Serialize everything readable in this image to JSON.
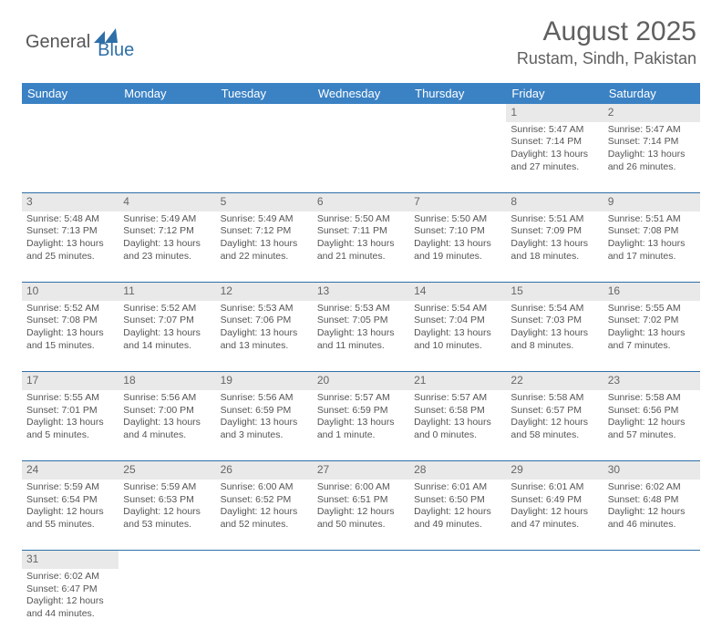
{
  "brand": {
    "part1": "General",
    "part2": "Blue"
  },
  "title": "August 2025",
  "location": "Rustam, Sindh, Pakistan",
  "colors": {
    "header_bg": "#3b82c4",
    "header_text": "#ffffff",
    "cell_border": "#2f6fa8",
    "daynum_bg": "#e9e9e9",
    "text": "#555555",
    "brand_accent": "#2f6fa8"
  },
  "weekdays": [
    "Sunday",
    "Monday",
    "Tuesday",
    "Wednesday",
    "Thursday",
    "Friday",
    "Saturday"
  ],
  "weeks": [
    [
      null,
      null,
      null,
      null,
      null,
      {
        "n": "1",
        "sr": "Sunrise: 5:47 AM",
        "ss": "Sunset: 7:14 PM",
        "dl1": "Daylight: 13 hours",
        "dl2": "and 27 minutes."
      },
      {
        "n": "2",
        "sr": "Sunrise: 5:47 AM",
        "ss": "Sunset: 7:14 PM",
        "dl1": "Daylight: 13 hours",
        "dl2": "and 26 minutes."
      }
    ],
    [
      {
        "n": "3",
        "sr": "Sunrise: 5:48 AM",
        "ss": "Sunset: 7:13 PM",
        "dl1": "Daylight: 13 hours",
        "dl2": "and 25 minutes."
      },
      {
        "n": "4",
        "sr": "Sunrise: 5:49 AM",
        "ss": "Sunset: 7:12 PM",
        "dl1": "Daylight: 13 hours",
        "dl2": "and 23 minutes."
      },
      {
        "n": "5",
        "sr": "Sunrise: 5:49 AM",
        "ss": "Sunset: 7:12 PM",
        "dl1": "Daylight: 13 hours",
        "dl2": "and 22 minutes."
      },
      {
        "n": "6",
        "sr": "Sunrise: 5:50 AM",
        "ss": "Sunset: 7:11 PM",
        "dl1": "Daylight: 13 hours",
        "dl2": "and 21 minutes."
      },
      {
        "n": "7",
        "sr": "Sunrise: 5:50 AM",
        "ss": "Sunset: 7:10 PM",
        "dl1": "Daylight: 13 hours",
        "dl2": "and 19 minutes."
      },
      {
        "n": "8",
        "sr": "Sunrise: 5:51 AM",
        "ss": "Sunset: 7:09 PM",
        "dl1": "Daylight: 13 hours",
        "dl2": "and 18 minutes."
      },
      {
        "n": "9",
        "sr": "Sunrise: 5:51 AM",
        "ss": "Sunset: 7:08 PM",
        "dl1": "Daylight: 13 hours",
        "dl2": "and 17 minutes."
      }
    ],
    [
      {
        "n": "10",
        "sr": "Sunrise: 5:52 AM",
        "ss": "Sunset: 7:08 PM",
        "dl1": "Daylight: 13 hours",
        "dl2": "and 15 minutes."
      },
      {
        "n": "11",
        "sr": "Sunrise: 5:52 AM",
        "ss": "Sunset: 7:07 PM",
        "dl1": "Daylight: 13 hours",
        "dl2": "and 14 minutes."
      },
      {
        "n": "12",
        "sr": "Sunrise: 5:53 AM",
        "ss": "Sunset: 7:06 PM",
        "dl1": "Daylight: 13 hours",
        "dl2": "and 13 minutes."
      },
      {
        "n": "13",
        "sr": "Sunrise: 5:53 AM",
        "ss": "Sunset: 7:05 PM",
        "dl1": "Daylight: 13 hours",
        "dl2": "and 11 minutes."
      },
      {
        "n": "14",
        "sr": "Sunrise: 5:54 AM",
        "ss": "Sunset: 7:04 PM",
        "dl1": "Daylight: 13 hours",
        "dl2": "and 10 minutes."
      },
      {
        "n": "15",
        "sr": "Sunrise: 5:54 AM",
        "ss": "Sunset: 7:03 PM",
        "dl1": "Daylight: 13 hours",
        "dl2": "and 8 minutes."
      },
      {
        "n": "16",
        "sr": "Sunrise: 5:55 AM",
        "ss": "Sunset: 7:02 PM",
        "dl1": "Daylight: 13 hours",
        "dl2": "and 7 minutes."
      }
    ],
    [
      {
        "n": "17",
        "sr": "Sunrise: 5:55 AM",
        "ss": "Sunset: 7:01 PM",
        "dl1": "Daylight: 13 hours",
        "dl2": "and 5 minutes."
      },
      {
        "n": "18",
        "sr": "Sunrise: 5:56 AM",
        "ss": "Sunset: 7:00 PM",
        "dl1": "Daylight: 13 hours",
        "dl2": "and 4 minutes."
      },
      {
        "n": "19",
        "sr": "Sunrise: 5:56 AM",
        "ss": "Sunset: 6:59 PM",
        "dl1": "Daylight: 13 hours",
        "dl2": "and 3 minutes."
      },
      {
        "n": "20",
        "sr": "Sunrise: 5:57 AM",
        "ss": "Sunset: 6:59 PM",
        "dl1": "Daylight: 13 hours",
        "dl2": "and 1 minute."
      },
      {
        "n": "21",
        "sr": "Sunrise: 5:57 AM",
        "ss": "Sunset: 6:58 PM",
        "dl1": "Daylight: 13 hours",
        "dl2": "and 0 minutes."
      },
      {
        "n": "22",
        "sr": "Sunrise: 5:58 AM",
        "ss": "Sunset: 6:57 PM",
        "dl1": "Daylight: 12 hours",
        "dl2": "and 58 minutes."
      },
      {
        "n": "23",
        "sr": "Sunrise: 5:58 AM",
        "ss": "Sunset: 6:56 PM",
        "dl1": "Daylight: 12 hours",
        "dl2": "and 57 minutes."
      }
    ],
    [
      {
        "n": "24",
        "sr": "Sunrise: 5:59 AM",
        "ss": "Sunset: 6:54 PM",
        "dl1": "Daylight: 12 hours",
        "dl2": "and 55 minutes."
      },
      {
        "n": "25",
        "sr": "Sunrise: 5:59 AM",
        "ss": "Sunset: 6:53 PM",
        "dl1": "Daylight: 12 hours",
        "dl2": "and 53 minutes."
      },
      {
        "n": "26",
        "sr": "Sunrise: 6:00 AM",
        "ss": "Sunset: 6:52 PM",
        "dl1": "Daylight: 12 hours",
        "dl2": "and 52 minutes."
      },
      {
        "n": "27",
        "sr": "Sunrise: 6:00 AM",
        "ss": "Sunset: 6:51 PM",
        "dl1": "Daylight: 12 hours",
        "dl2": "and 50 minutes."
      },
      {
        "n": "28",
        "sr": "Sunrise: 6:01 AM",
        "ss": "Sunset: 6:50 PM",
        "dl1": "Daylight: 12 hours",
        "dl2": "and 49 minutes."
      },
      {
        "n": "29",
        "sr": "Sunrise: 6:01 AM",
        "ss": "Sunset: 6:49 PM",
        "dl1": "Daylight: 12 hours",
        "dl2": "and 47 minutes."
      },
      {
        "n": "30",
        "sr": "Sunrise: 6:02 AM",
        "ss": "Sunset: 6:48 PM",
        "dl1": "Daylight: 12 hours",
        "dl2": "and 46 minutes."
      }
    ],
    [
      {
        "n": "31",
        "sr": "Sunrise: 6:02 AM",
        "ss": "Sunset: 6:47 PM",
        "dl1": "Daylight: 12 hours",
        "dl2": "and 44 minutes."
      },
      null,
      null,
      null,
      null,
      null,
      null
    ]
  ]
}
